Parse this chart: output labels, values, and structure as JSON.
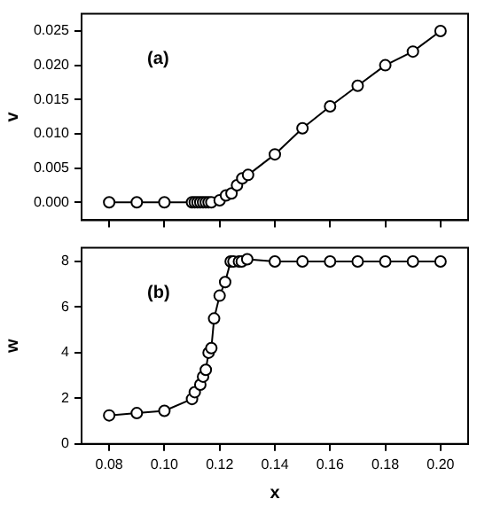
{
  "chart_data": [
    {
      "type": "line",
      "ylabel": "v",
      "annotations": [
        "(a)"
      ],
      "xlim": [
        0.07,
        0.21
      ],
      "xticks": [
        {
          "value": 0.08,
          "label": null
        },
        {
          "value": 0.1,
          "label": null
        },
        {
          "value": 0.12,
          "label": null
        },
        {
          "value": 0.14,
          "label": null
        },
        {
          "value": 0.16,
          "label": null
        },
        {
          "value": 0.18,
          "label": null
        },
        {
          "value": 0.2,
          "label": null
        }
      ],
      "ylim": [
        -0.0026,
        0.0275
      ],
      "yticks": [
        {
          "value": 0,
          "label": "0.000"
        },
        {
          "value": 0.005,
          "label": "0.005"
        },
        {
          "value": 0.01,
          "label": "0.010"
        },
        {
          "value": 0.015,
          "label": "0.015"
        },
        {
          "value": 0.02,
          "label": "0.020"
        },
        {
          "value": 0.025,
          "label": "0.025"
        }
      ],
      "tick_labels": "y",
      "marker": "circle",
      "grid": false,
      "legend": false,
      "series": [
        {
          "color": "#000000",
          "x": [
            0.08,
            0.09,
            0.1,
            0.11,
            0.111,
            0.112,
            0.113,
            0.114,
            0.115,
            0.116,
            0.117,
            0.12,
            0.1223,
            0.1243,
            0.1263,
            0.1282,
            0.1303,
            0.14,
            0.15,
            0.16,
            0.17,
            0.18,
            0.19,
            0.2
          ],
          "values": [
            0,
            0,
            0,
            0,
            0,
            0,
            0,
            0,
            0,
            0,
            0,
            0.0003,
            0.001,
            0.0013,
            0.0025,
            0.0035,
            0.004,
            0.007,
            0.0108,
            0.014,
            0.017,
            0.02,
            0.022,
            0.025
          ]
        }
      ]
    },
    {
      "type": "line",
      "xlabel": "x",
      "ylabel": "w",
      "annotations": [
        "(b)"
      ],
      "xlim": [
        0.07,
        0.21
      ],
      "xticks": [
        0.08,
        {
          "value": 0.1,
          "label": "0.10"
        },
        0.12,
        0.14,
        0.16,
        0.18,
        {
          "value": 0.2,
          "label": "0.20"
        }
      ],
      "ylim": [
        0,
        8.6
      ],
      "yticks": [
        0,
        2,
        4,
        6,
        8
      ],
      "marker": "circle",
      "grid": false,
      "legend": false,
      "series": [
        {
          "color": "#000000",
          "x": [
            0.08,
            0.09,
            0.1,
            0.11,
            0.111,
            0.113,
            0.114,
            0.115,
            0.116,
            0.117,
            0.118,
            0.12,
            0.122,
            0.124,
            0.125,
            0.127,
            0.128,
            0.13,
            0.14,
            0.15,
            0.16,
            0.17,
            0.18,
            0.19,
            0.2
          ],
          "values": [
            1.25,
            1.35,
            1.45,
            1.97,
            2.27,
            2.6,
            2.95,
            3.25,
            4.0,
            4.2,
            5.5,
            6.5,
            7.1,
            8.0,
            8.0,
            8.0,
            8.0,
            8.1,
            8.0,
            8.0,
            8.0,
            8.0,
            8.0,
            8.0,
            8.0
          ]
        }
      ]
    }
  ]
}
